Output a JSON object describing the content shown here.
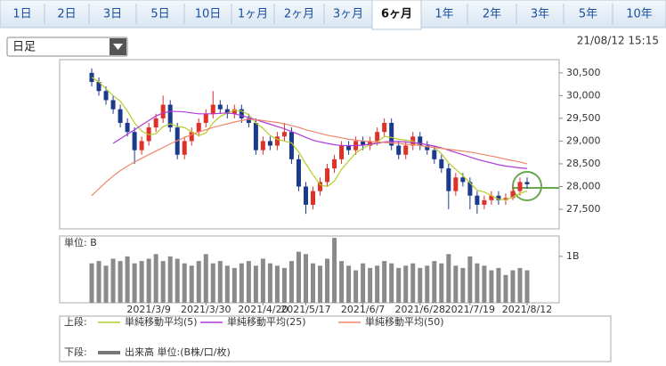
{
  "tabs": [
    "1日",
    "2日",
    "3日",
    "5日",
    "10日",
    "1ヶ月",
    "2ヶ月",
    "3ヶ月",
    "6ヶ月",
    "1年",
    "2年",
    "3年",
    "5年",
    "10年"
  ],
  "selected_tab": "6ヶ月",
  "selector": "日足",
  "timestamp": "21/08/12 15:15",
  "chart_data": {
    "type": "candlestick",
    "categories": [
      null,
      null,
      null,
      null,
      null,
      null,
      null,
      null,
      "2021/3/9",
      null,
      null,
      null,
      null,
      null,
      null,
      null,
      "2021/3/30",
      null,
      null,
      null,
      null,
      null,
      null,
      null,
      "2021/4/20",
      null,
      null,
      null,
      null,
      null,
      "2021/5/17",
      null,
      null,
      null,
      null,
      null,
      null,
      null,
      "2021/6/7",
      null,
      null,
      null,
      null,
      null,
      null,
      null,
      "2021/6/28",
      null,
      null,
      null,
      null,
      null,
      null,
      "2021/7/19",
      null,
      null,
      null,
      null,
      null,
      null,
      null,
      "2021/8/12"
    ],
    "open": [
      30500,
      30300,
      30100,
      29900,
      29700,
      29400,
      29200,
      28800,
      29000,
      29300,
      29500,
      29800,
      29300,
      28700,
      29000,
      29200,
      29400,
      29600,
      29800,
      29700,
      29600,
      29700,
      29500,
      29400,
      28800,
      29000,
      28900,
      29100,
      29200,
      28600,
      28000,
      27600,
      27900,
      28100,
      28400,
      28600,
      28900,
      28800,
      29000,
      28900,
      29000,
      29200,
      29400,
      28900,
      28700,
      28900,
      29100,
      28900,
      28800,
      28600,
      28400,
      27900,
      28200,
      28100,
      27800,
      27600,
      27700,
      27800,
      27700,
      27750,
      27900,
      28100
    ],
    "high": [
      30600,
      30400,
      30200,
      30000,
      29800,
      29500,
      29300,
      29100,
      29400,
      29600,
      30000,
      29900,
      29400,
      29100,
      29300,
      29500,
      29700,
      30100,
      29900,
      29800,
      29800,
      29800,
      29600,
      29500,
      29100,
      29100,
      29200,
      29400,
      29300,
      28700,
      28100,
      28000,
      28200,
      28500,
      28700,
      29000,
      29000,
      29100,
      29100,
      29100,
      29300,
      29500,
      29500,
      29000,
      29000,
      29200,
      29200,
      29000,
      28900,
      28700,
      28500,
      28300,
      28300,
      28200,
      27900,
      27800,
      27900,
      27900,
      27850,
      28000,
      28200,
      28200
    ],
    "low": [
      30200,
      30000,
      29800,
      29600,
      29300,
      29100,
      28500,
      28700,
      28900,
      29200,
      29400,
      29200,
      28600,
      28600,
      28900,
      29100,
      29300,
      29500,
      29600,
      29500,
      29500,
      29400,
      29300,
      28700,
      28700,
      28800,
      28800,
      29000,
      28500,
      27900,
      27400,
      27500,
      27800,
      28000,
      28300,
      28500,
      28700,
      28700,
      28800,
      28800,
      28900,
      29100,
      28800,
      28600,
      28600,
      28800,
      28800,
      28700,
      28500,
      28300,
      27500,
      27800,
      28000,
      27500,
      27400,
      27500,
      27600,
      27600,
      27600,
      27700,
      27800,
      27950
    ],
    "close": [
      30300,
      30100,
      29900,
      29700,
      29400,
      29200,
      28800,
      29000,
      29300,
      29500,
      29800,
      29300,
      28700,
      29000,
      29200,
      29400,
      29600,
      29800,
      29700,
      29600,
      29700,
      29500,
      29400,
      28800,
      29000,
      28900,
      29100,
      29200,
      28600,
      28000,
      27600,
      27900,
      28100,
      28400,
      28600,
      28900,
      28800,
      29000,
      28900,
      29000,
      29200,
      29400,
      28900,
      28700,
      28900,
      29100,
      28900,
      28800,
      28600,
      28400,
      27900,
      28200,
      28100,
      27800,
      27600,
      27700,
      27800,
      27700,
      27750,
      27900,
      28100,
      28050
    ],
    "up_color": "#e0302a",
    "down_color": "#1c3a8c",
    "series": [
      {
        "name": "単純移動平均(5)",
        "color": "#b5cc2a",
        "values": [
          30400,
          30300,
          30150,
          30000,
          29880,
          29660,
          29400,
          29220,
          29140,
          29160,
          29320,
          29380,
          29320,
          29300,
          29200,
          29120,
          29180,
          29400,
          29540,
          29620,
          29680,
          29660,
          29580,
          29400,
          29280,
          29120,
          29040,
          29000,
          28960,
          28760,
          28500,
          28260,
          28040,
          28000,
          28120,
          28380,
          28560,
          28740,
          28840,
          28920,
          28980,
          29100,
          29080,
          29040,
          29020,
          29000,
          28900,
          28880,
          28860,
          28720,
          28520,
          28380,
          28240,
          28080,
          27920,
          27880,
          27800,
          27720,
          27710,
          27770,
          27850,
          27900
        ]
      },
      {
        "name": "単純移動平均(25)",
        "color": "#b03ad8",
        "values": [
          null,
          null,
          null,
          28950,
          29050,
          29150,
          29250,
          29350,
          29450,
          29550,
          29620,
          29650,
          29650,
          29640,
          29620,
          29600,
          29600,
          29600,
          29610,
          29620,
          29600,
          29560,
          29520,
          29470,
          29420,
          29370,
          29320,
          29270,
          29210,
          29150,
          29080,
          29020,
          28980,
          28950,
          28920,
          28900,
          28900,
          28900,
          28910,
          28930,
          28950,
          28980,
          28990,
          28990,
          28980,
          28970,
          28950,
          28920,
          28890,
          28850,
          28800,
          28750,
          28700,
          28650,
          28600,
          28560,
          28520,
          28480,
          28450,
          28430,
          28410,
          28400
        ]
      },
      {
        "name": "単純移動平均(50)",
        "color": "#f0866a",
        "values": [
          27800,
          27950,
          28100,
          28230,
          28350,
          28450,
          28540,
          28620,
          28700,
          28780,
          28860,
          28940,
          29010,
          29080,
          29140,
          29200,
          29250,
          29300,
          29340,
          29380,
          29420,
          29450,
          29480,
          29470,
          29450,
          29430,
          29410,
          29380,
          29340,
          29300,
          29250,
          29210,
          29170,
          29130,
          29100,
          29070,
          29040,
          29020,
          29000,
          28990,
          28980,
          28970,
          28960,
          28950,
          28930,
          28920,
          28900,
          28880,
          28860,
          28840,
          28820,
          28800,
          28780,
          28760,
          28730,
          28700,
          28670,
          28640,
          28600,
          28570,
          28540,
          28500
        ]
      }
    ],
    "ylim": [
      27070,
      30790
    ],
    "yticks": [
      {
        "value": 27500,
        "label": "27,500"
      },
      {
        "value": 28000,
        "label": "28,000"
      },
      {
        "value": 28500,
        "label": "28,500"
      },
      {
        "value": 29000,
        "label": "29,000"
      },
      {
        "value": 29500,
        "label": "29,500"
      },
      {
        "value": 30000,
        "label": "30,000"
      },
      {
        "value": 30500,
        "label": "30,500"
      }
    ],
    "legend_upper": "上段:",
    "legend_lower": "下段:",
    "volume": {
      "type": "bar",
      "name": "出来高 単位:(B株/口/枚)",
      "unit_label": "単位: B",
      "color": "#8a8a8a",
      "values": [
        0.85,
        0.9,
        0.8,
        0.95,
        0.9,
        1.0,
        0.85,
        0.9,
        0.95,
        1.05,
        0.9,
        1.0,
        0.95,
        0.85,
        0.8,
        0.9,
        1.05,
        0.85,
        0.9,
        0.8,
        0.75,
        0.85,
        0.9,
        0.8,
        0.95,
        0.85,
        0.8,
        0.75,
        0.9,
        1.1,
        1.05,
        0.85,
        0.8,
        0.95,
        1.4,
        0.9,
        0.8,
        0.7,
        0.85,
        0.75,
        0.8,
        0.9,
        0.85,
        0.75,
        0.8,
        0.85,
        0.75,
        0.8,
        0.9,
        0.85,
        1.05,
        0.8,
        0.75,
        1.0,
        0.85,
        0.8,
        0.7,
        0.75,
        0.6,
        0.7,
        0.75,
        0.7
      ],
      "ylim": [
        0,
        1.44
      ],
      "yticks": [
        {
          "value": 1,
          "label": "1B"
        }
      ]
    }
  }
}
